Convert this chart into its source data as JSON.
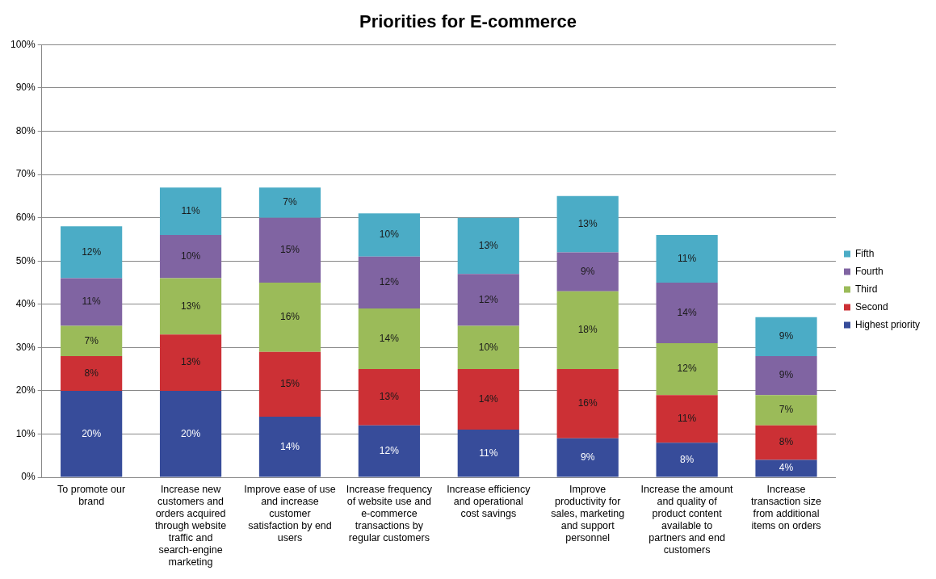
{
  "chart_data": {
    "type": "bar",
    "title": "Priorities for E-commerce",
    "stacked": true,
    "categories": [
      "To promote our brand",
      "Increase new customers and orders acquired through website traffic and search-engine marketing",
      "Improve ease of use and increase customer satisfaction by end users",
      "Increase frequency of website use and e-commerce transactions by regular customers",
      "Increase efficiency and operational cost savings",
      "Improve productivity for sales, marketing and support personnel",
      "Increase the amount and quality of product content available to partners and end customers",
      "Increase transaction size from additional items on orders"
    ],
    "series": [
      {
        "name": "Highest priority",
        "color": "#374c9a",
        "values": [
          20,
          20,
          14,
          12,
          11,
          9,
          8,
          4
        ],
        "value_labels": [
          "20%",
          "20%",
          "14%",
          "12%",
          "11%",
          "9%",
          "8%",
          "4%"
        ]
      },
      {
        "name": "Second",
        "color": "#cc3035",
        "values": [
          8,
          13,
          15,
          13,
          14,
          16,
          11,
          8
        ],
        "value_labels": [
          "8%",
          "13%",
          "15%",
          "13%",
          "14%",
          "16%",
          "11%",
          "8%"
        ]
      },
      {
        "name": "Third",
        "color": "#9bbb59",
        "values": [
          7,
          13,
          16,
          14,
          10,
          18,
          12,
          7
        ],
        "value_labels": [
          "7%",
          "13%",
          "16%",
          "14%",
          "10%",
          "18%",
          "12%",
          "7%"
        ]
      },
      {
        "name": "Fourth",
        "color": "#8064a2",
        "values": [
          11,
          10,
          15,
          12,
          12,
          9,
          14,
          9
        ],
        "value_labels": [
          "11%",
          "10%",
          "15%",
          "12%",
          "12%",
          "9%",
          "14%",
          "9%"
        ]
      },
      {
        "name": "Fifth",
        "color": "#4bacc6",
        "values": [
          12,
          11,
          7,
          10,
          13,
          13,
          11,
          9
        ],
        "value_labels": [
          "12%",
          "11%",
          "7%",
          "10%",
          "13%",
          "13%",
          "11%",
          "9%"
        ]
      }
    ],
    "ylim": [
      0,
      100
    ],
    "yticks": [
      {
        "value": 0,
        "label": "0%"
      },
      {
        "value": 10,
        "label": "10%"
      },
      {
        "value": 20,
        "label": "20%"
      },
      {
        "value": 30,
        "label": "30%"
      },
      {
        "value": 40,
        "label": "40%"
      },
      {
        "value": 50,
        "label": "50%"
      },
      {
        "value": 60,
        "label": "60%"
      },
      {
        "value": 70,
        "label": "70%"
      },
      {
        "value": 80,
        "label": "80%"
      },
      {
        "value": 90,
        "label": "90%"
      },
      {
        "value": 100,
        "label": "100%"
      }
    ],
    "grid": "y",
    "legend": "right"
  }
}
